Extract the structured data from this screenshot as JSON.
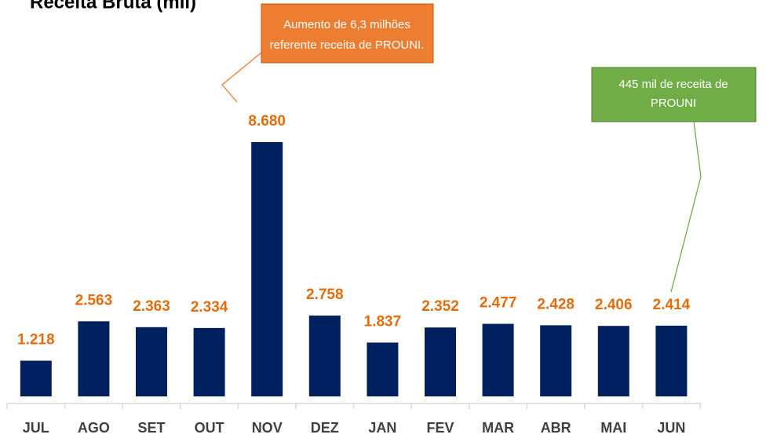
{
  "chart_data": {
    "type": "bar",
    "title": "Receita Bruta (mil)",
    "categories": [
      "JUL",
      "AGO",
      "SET",
      "OUT",
      "NOV",
      "DEZ",
      "JAN",
      "FEV",
      "MAR",
      "ABR",
      "MAI",
      "JUN"
    ],
    "values": [
      1218,
      2563,
      2363,
      2334,
      8680,
      2758,
      1837,
      2352,
      2477,
      2428,
      2406,
      2414
    ],
    "value_labels": [
      "1.218",
      "2.563",
      "2.363",
      "2.334",
      "8.680",
      "2.758",
      "1.837",
      "2.352",
      "2.477",
      "2.428",
      "2.406",
      "2.414"
    ],
    "color": "#002060",
    "label_color": "#E46C0A",
    "annotations": [
      {
        "lines": [
          "Aumento de 6,3 milhões",
          "referente receita de PROUNI."
        ],
        "color": "#ED7D31"
      },
      {
        "lines": [
          "445 mil de receita de",
          "PROUNI"
        ],
        "color": "#70AD47"
      }
    ]
  }
}
